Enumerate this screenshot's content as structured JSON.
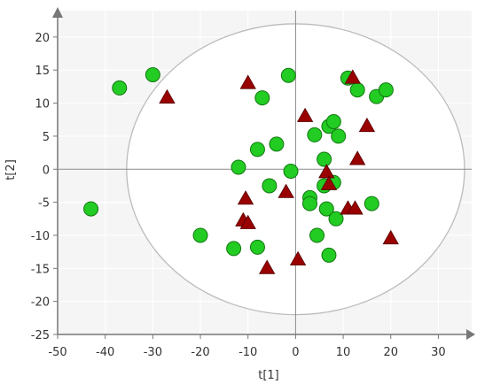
{
  "chart_data": {
    "type": "scatter",
    "xlabel": "t[1]",
    "ylabel": "t[2]",
    "xlim": [
      -50,
      37
    ],
    "ylim": [
      -25,
      24
    ],
    "xticks": [
      "-50",
      "-40",
      "-30",
      "-20",
      "-10",
      "0",
      "10",
      "20",
      "30"
    ],
    "yticks": [
      "-25",
      "-20",
      "-15",
      "-10",
      "-5",
      "0",
      "5",
      "10",
      "15",
      "20"
    ],
    "grid": true,
    "ellipse": {
      "cx": 0,
      "cy": 0,
      "rx": 35.5,
      "ry": 22
    },
    "colors": {
      "circle_fill": "#22cc22",
      "circle_stroke": "#117711",
      "triangle_fill": "#990000",
      "triangle_stroke": "#550000",
      "plot_background": "#f5f5f5",
      "grid": "#ffffff",
      "axis": "#777777",
      "ellipse": "#bbbbbb"
    },
    "series": [
      {
        "marker": "circle",
        "points": [
          [
            -43,
            -6
          ],
          [
            -37,
            12.3
          ],
          [
            -30,
            14.3
          ],
          [
            -20,
            -10
          ],
          [
            -13,
            -12
          ],
          [
            -12,
            0.3
          ],
          [
            -8,
            3
          ],
          [
            -8,
            -11.8
          ],
          [
            -7,
            10.8
          ],
          [
            -5.5,
            -2.5
          ],
          [
            -4,
            3.8
          ],
          [
            -1.5,
            14.2
          ],
          [
            -1,
            -0.3
          ],
          [
            3,
            -4.3
          ],
          [
            3,
            -5.2
          ],
          [
            4,
            5.2
          ],
          [
            4.5,
            -10
          ],
          [
            6,
            1.5
          ],
          [
            6,
            -2.5
          ],
          [
            6.5,
            -6
          ],
          [
            7,
            -13
          ],
          [
            7,
            6.5
          ],
          [
            8,
            -2
          ],
          [
            8,
            7.2
          ],
          [
            8.5,
            -7.5
          ],
          [
            9,
            5
          ],
          [
            11,
            13.8
          ],
          [
            13,
            12
          ],
          [
            16,
            -5.2
          ],
          [
            17,
            11
          ],
          [
            19,
            12
          ]
        ]
      },
      {
        "marker": "triangle",
        "points": [
          [
            -27,
            10.8
          ],
          [
            -10,
            13
          ],
          [
            -10.5,
            -4.5
          ],
          [
            -11,
            -7.8
          ],
          [
            -10,
            -8.2
          ],
          [
            -6,
            -15
          ],
          [
            -2,
            -3.5
          ],
          [
            0.5,
            -13.7
          ],
          [
            2,
            8
          ],
          [
            6.5,
            -0.5
          ],
          [
            7,
            -2.3
          ],
          [
            11,
            -6
          ],
          [
            12,
            13.8
          ],
          [
            12.5,
            -6
          ],
          [
            13,
            1.5
          ],
          [
            15,
            6.5
          ],
          [
            20,
            -10.5
          ]
        ]
      }
    ]
  }
}
